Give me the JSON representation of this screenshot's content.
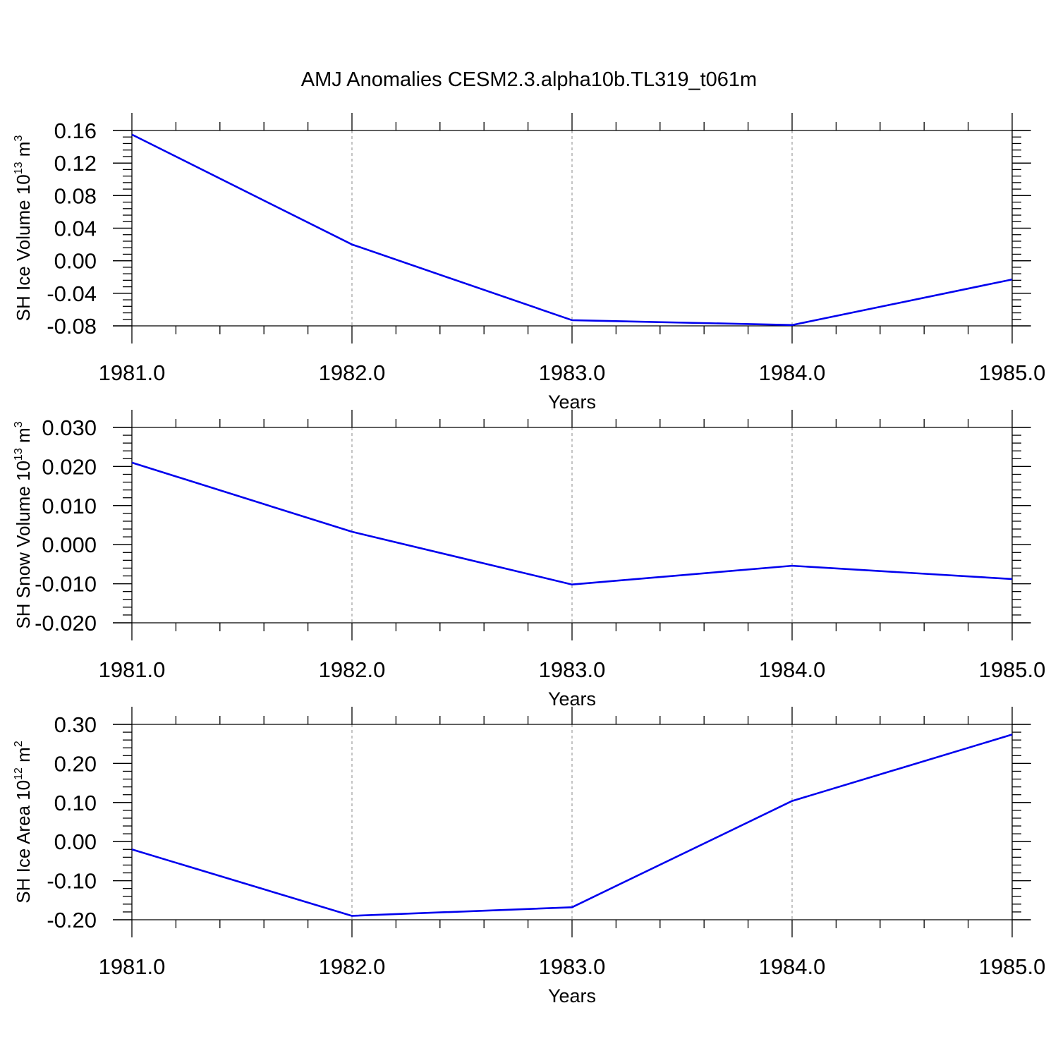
{
  "title": "AMJ Anomalies CESM2.3.alpha10b.TL319_t061m",
  "colors": {
    "line": "#0000ee",
    "axis": "#000000",
    "grid": "#888888"
  },
  "chart_data": [
    {
      "type": "line",
      "ylabel": {
        "prefix": "SH Ice Volume 10",
        "exp": "13",
        "unit": " m",
        "unit_exp": "3"
      },
      "xlabel": "Years",
      "x": [
        1981,
        1982,
        1983,
        1984,
        1985
      ],
      "xticks": [
        "1981.0",
        "1982.0",
        "1983.0",
        "1984.0",
        "1985.0"
      ],
      "xlim": [
        1981,
        1985
      ],
      "ylim": [
        -0.08,
        0.16
      ],
      "yticks": [
        -0.08,
        -0.04,
        0.0,
        0.04,
        0.08,
        0.12,
        0.16
      ],
      "ytick_labels": [
        "-0.08",
        "-0.04",
        "0.00",
        "0.04",
        "0.08",
        "0.12",
        "0.16"
      ],
      "series": [
        {
          "values": [
            0.155,
            0.02,
            -0.073,
            -0.079,
            -0.023
          ]
        }
      ],
      "grid": "vertical-dashed"
    },
    {
      "type": "line",
      "ylabel": {
        "prefix": "SH Snow Volume 10",
        "exp": "13",
        "unit": " m",
        "unit_exp": "3"
      },
      "xlabel": "Years",
      "x": [
        1981,
        1982,
        1983,
        1984,
        1985
      ],
      "xticks": [
        "1981.0",
        "1982.0",
        "1983.0",
        "1984.0",
        "1985.0"
      ],
      "xlim": [
        1981,
        1985
      ],
      "ylim": [
        -0.02,
        0.03
      ],
      "yticks": [
        -0.02,
        -0.01,
        0.0,
        0.01,
        0.02,
        0.03
      ],
      "ytick_labels": [
        "-0.020",
        "-0.010",
        "0.000",
        "0.010",
        "0.020",
        "0.030"
      ],
      "series": [
        {
          "values": [
            0.021,
            0.0033,
            -0.0102,
            -0.0054,
            -0.0088
          ]
        }
      ],
      "grid": "vertical-dashed"
    },
    {
      "type": "line",
      "ylabel": {
        "prefix": "SH Ice Area 10",
        "exp": "12",
        "unit": " m",
        "unit_exp": "2"
      },
      "xlabel": "Years",
      "x": [
        1981,
        1982,
        1983,
        1984,
        1985
      ],
      "xticks": [
        "1981.0",
        "1982.0",
        "1983.0",
        "1984.0",
        "1985.0"
      ],
      "xlim": [
        1981,
        1985
      ],
      "ylim": [
        -0.2,
        0.3
      ],
      "yticks": [
        -0.2,
        -0.1,
        0.0,
        0.1,
        0.2,
        0.3
      ],
      "ytick_labels": [
        "-0.20",
        "-0.10",
        "0.00",
        "0.10",
        "0.20",
        "0.30"
      ],
      "series": [
        {
          "values": [
            -0.02,
            -0.19,
            -0.168,
            0.104,
            0.274
          ]
        }
      ],
      "grid": "vertical-dashed"
    }
  ]
}
